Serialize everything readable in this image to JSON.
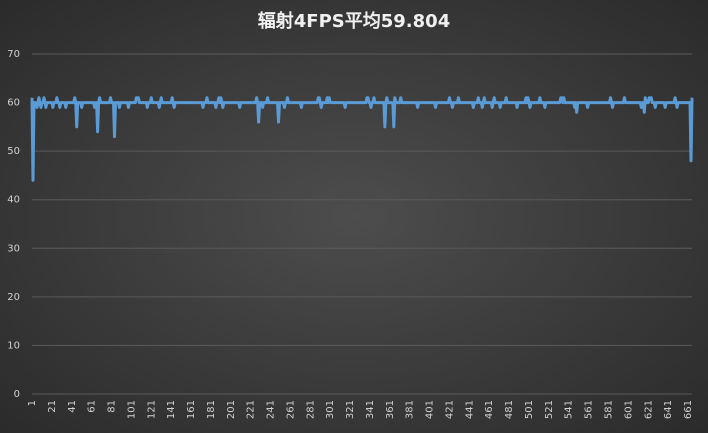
{
  "chart_data": {
    "type": "line",
    "title": "辐射4FPS平均59.804",
    "x": [
      1,
      2,
      3,
      4,
      5,
      6,
      7,
      8,
      9,
      10,
      11,
      12,
      13,
      14,
      15,
      16,
      17,
      18,
      19,
      20,
      21,
      22,
      23,
      24,
      25,
      26,
      27,
      28,
      29,
      30,
      31,
      32,
      33,
      34,
      35,
      36,
      37,
      38,
      39,
      40,
      41,
      42,
      43,
      44,
      45,
      46,
      47,
      48,
      49,
      50,
      51,
      52,
      53,
      54,
      55,
      56,
      57,
      58,
      59,
      60,
      61,
      62,
      63,
      64,
      65,
      66,
      67,
      68,
      69,
      70,
      71,
      72,
      73,
      74,
      75,
      76,
      77,
      78,
      79,
      80,
      81,
      82,
      83,
      84,
      85,
      86,
      87,
      88,
      89,
      90,
      91,
      92,
      93,
      94,
      95,
      96,
      97,
      98,
      99,
      100,
      101,
      102,
      103,
      104,
      105,
      106,
      107,
      108,
      109,
      110,
      111,
      112,
      113,
      114,
      115,
      116,
      117,
      118,
      119,
      120,
      121,
      122,
      123,
      124,
      125,
      126,
      127,
      128,
      129,
      130,
      131,
      132,
      133,
      134,
      135,
      136,
      137,
      138,
      139,
      140,
      141,
      142,
      143,
      144,
      145,
      146,
      147,
      148,
      149,
      150,
      151,
      152,
      153,
      154,
      155,
      156,
      157,
      158,
      159,
      160,
      161,
      162,
      163,
      164,
      165,
      166,
      167,
      168,
      169,
      170,
      171,
      172,
      173,
      174,
      175,
      176,
      177,
      178,
      179,
      180,
      181,
      182,
      183,
      184,
      185,
      186,
      187,
      188,
      189,
      190,
      191,
      192,
      193,
      194,
      195,
      196,
      197,
      198,
      199,
      200,
      201,
      202,
      203,
      204,
      205,
      206,
      207,
      208,
      209,
      210,
      211,
      212,
      213,
      214,
      215,
      216,
      217,
      218,
      219,
      220,
      221,
      222,
      223,
      224,
      225,
      226,
      227,
      228,
      229,
      230,
      231,
      232,
      233,
      234,
      235,
      236,
      237,
      238,
      239,
      240,
      241,
      242,
      243,
      244,
      245,
      246,
      247,
      248,
      249,
      250,
      251,
      252,
      253,
      254,
      255,
      256,
      257,
      258,
      259,
      260,
      261,
      262,
      263,
      264,
      265,
      266,
      267,
      268,
      269,
      270,
      271,
      272,
      273,
      274,
      275,
      276,
      277,
      278,
      279,
      280,
      281,
      282,
      283,
      284,
      285,
      286,
      287,
      288,
      289,
      290,
      291,
      292,
      293,
      294,
      295,
      296,
      297,
      298,
      299,
      300,
      301,
      302,
      303,
      304,
      305,
      306,
      307,
      308,
      309,
      310,
      311,
      312,
      313,
      314,
      315,
      316,
      317,
      318,
      319,
      320,
      321,
      322,
      323,
      324,
      325,
      326,
      327,
      328,
      329,
      330,
      331,
      332,
      333,
      334,
      335,
      336,
      337,
      338,
      339,
      340,
      341,
      342,
      343,
      344,
      345,
      346,
      347,
      348,
      349,
      350,
      351,
      352,
      353,
      354,
      355,
      356,
      357,
      358,
      359,
      360,
      361,
      362,
      363,
      364,
      365,
      366,
      367,
      368,
      369,
      370,
      371,
      372,
      373,
      374,
      375,
      376,
      377,
      378,
      379,
      380,
      381,
      382,
      383,
      384,
      385,
      386,
      387,
      388,
      389,
      390,
      391,
      392,
      393,
      394,
      395,
      396,
      397,
      398,
      399,
      400,
      401,
      402,
      403,
      404,
      405,
      406,
      407,
      408,
      409,
      410,
      411,
      412,
      413,
      414,
      415,
      416,
      417,
      418,
      419,
      420,
      421,
      422,
      423,
      424,
      425,
      426,
      427,
      428,
      429,
      430,
      431,
      432,
      433,
      434,
      435,
      436,
      437,
      438,
      439,
      440,
      441,
      442,
      443,
      444,
      445,
      446,
      447,
      448,
      449,
      450,
      451,
      452,
      453,
      454,
      455,
      456,
      457,
      458,
      459,
      460,
      461,
      462,
      463,
      464,
      465,
      466,
      467,
      468,
      469,
      470,
      471,
      472,
      473,
      474,
      475,
      476,
      477,
      478,
      479,
      480,
      481,
      482,
      483,
      484,
      485,
      486,
      487,
      488,
      489,
      490,
      491,
      492,
      493,
      494,
      495,
      496,
      497,
      498,
      499,
      500,
      501,
      502,
      503,
      504,
      505,
      506,
      507,
      508,
      509,
      510,
      511,
      512,
      513,
      514,
      515,
      516,
      517,
      518,
      519,
      520,
      521,
      522,
      523,
      524,
      525,
      526,
      527,
      528,
      529,
      530,
      531,
      532,
      533,
      534,
      535,
      536,
      537,
      538,
      539,
      540,
      541,
      542,
      543,
      544,
      545,
      546,
      547,
      548,
      549,
      550,
      551,
      552,
      553,
      554,
      555,
      556,
      557,
      558,
      559,
      560,
      561,
      562,
      563,
      564,
      565,
      566,
      567,
      568,
      569,
      570,
      571,
      572,
      573,
      574,
      575,
      576,
      577,
      578,
      579,
      580,
      581,
      582,
      583,
      584,
      585,
      586,
      587,
      588,
      589,
      590,
      591,
      592,
      593,
      594,
      595,
      596,
      597,
      598,
      599,
      600,
      601,
      602,
      603,
      604,
      605,
      606,
      607,
      608,
      609,
      610,
      611,
      612,
      613,
      614,
      615,
      616,
      617,
      618,
      619,
      620,
      621,
      622,
      623,
      624,
      625,
      626,
      627,
      628,
      629,
      630,
      631,
      632,
      633,
      634,
      635,
      636,
      637,
      638,
      639,
      640,
      641,
      642,
      643,
      644,
      645,
      646,
      647,
      648,
      649,
      650,
      651,
      652,
      653,
      654,
      655,
      656,
      657,
      658,
      659,
      660,
      661,
      662,
      663,
      664,
      665
    ],
    "values": [
      61,
      44,
      60,
      60,
      60,
      59,
      60,
      61,
      60,
      59,
      60,
      60,
      61,
      60,
      59,
      60,
      60,
      60,
      60,
      60,
      60,
      59,
      60,
      60,
      60,
      61,
      60,
      60,
      59,
      60,
      60,
      60,
      60,
      60,
      59,
      60,
      60,
      60,
      60,
      60,
      60,
      60,
      60,
      61,
      60,
      55,
      60,
      60,
      60,
      60,
      59,
      60,
      60,
      60,
      60,
      60,
      60,
      60,
      60,
      60,
      60,
      60,
      60,
      59,
      60,
      60,
      54,
      60,
      61,
      60,
      60,
      60,
      60,
      60,
      60,
      60,
      60,
      60,
      60,
      61,
      60,
      60,
      60,
      53,
      60,
      60,
      60,
      60,
      59,
      60,
      60,
      60,
      60,
      60,
      60,
      60,
      60,
      59,
      60,
      60,
      60,
      60,
      60,
      60,
      60,
      61,
      61,
      61,
      60,
      60,
      60,
      60,
      60,
      60,
      60,
      60,
      59,
      60,
      60,
      60,
      61,
      60,
      60,
      60,
      60,
      60,
      60,
      60,
      59,
      60,
      61,
      60,
      60,
      60,
      60,
      60,
      60,
      60,
      60,
      60,
      60,
      61,
      60,
      59,
      60,
      60,
      60,
      60,
      60,
      60,
      60,
      60,
      60,
      60,
      60,
      60,
      60,
      60,
      60,
      60,
      60,
      60,
      60,
      60,
      60,
      60,
      60,
      60,
      60,
      60,
      60,
      60,
      59,
      60,
      60,
      60,
      61,
      60,
      60,
      60,
      60,
      60,
      60,
      60,
      60,
      59,
      60,
      60,
      61,
      60,
      61,
      60,
      59,
      60,
      60,
      60,
      60,
      60,
      60,
      60,
      60,
      60,
      60,
      60,
      60,
      60,
      60,
      60,
      60,
      59,
      60,
      60,
      60,
      60,
      60,
      60,
      60,
      60,
      60,
      60,
      60,
      60,
      60,
      60,
      60,
      60,
      61,
      60,
      56,
      60,
      60,
      60,
      59,
      60,
      60,
      60,
      60,
      61,
      60,
      60,
      60,
      60,
      60,
      60,
      60,
      60,
      60,
      60,
      56,
      60,
      60,
      60,
      60,
      60,
      59,
      60,
      60,
      61,
      60,
      60,
      60,
      60,
      60,
      60,
      60,
      60,
      60,
      60,
      60,
      60,
      60,
      59,
      60,
      60,
      60,
      60,
      60,
      60,
      60,
      60,
      60,
      60,
      60,
      60,
      60,
      60,
      60,
      60,
      61,
      61,
      60,
      59,
      60,
      60,
      60,
      60,
      60,
      61,
      60,
      61,
      60,
      60,
      60,
      60,
      60,
      60,
      60,
      60,
      60,
      60,
      60,
      60,
      60,
      60,
      60,
      59,
      60,
      60,
      60,
      60,
      60,
      60,
      60,
      60,
      60,
      60,
      60,
      60,
      60,
      60,
      60,
      60,
      60,
      60,
      60,
      60,
      60,
      61,
      61,
      60,
      60,
      59,
      60,
      60,
      61,
      60,
      60,
      60,
      60,
      60,
      60,
      60,
      60,
      60,
      60,
      55,
      60,
      61,
      60,
      60,
      60,
      60,
      60,
      60,
      55,
      61,
      60,
      60,
      60,
      60,
      60,
      61,
      60,
      60,
      60,
      60,
      60,
      60,
      60,
      60,
      60,
      60,
      60,
      60,
      60,
      60,
      60,
      60,
      59,
      60,
      60,
      60,
      60,
      60,
      60,
      60,
      60,
      60,
      60,
      60,
      60,
      60,
      60,
      60,
      60,
      60,
      59,
      60,
      60,
      60,
      60,
      60,
      60,
      60,
      60,
      60,
      60,
      60,
      60,
      60,
      61,
      60,
      60,
      59,
      60,
      60,
      60,
      60,
      60,
      61,
      60,
      60,
      60,
      60,
      60,
      60,
      60,
      60,
      60,
      60,
      60,
      60,
      60,
      60,
      59,
      60,
      60,
      60,
      60,
      61,
      60,
      60,
      60,
      59,
      60,
      61,
      60,
      60,
      60,
      60,
      60,
      60,
      60,
      59,
      60,
      61,
      60,
      60,
      60,
      60,
      60,
      59,
      60,
      60,
      60,
      60,
      60,
      61,
      60,
      60,
      60,
      60,
      60,
      60,
      60,
      60,
      60,
      60,
      59,
      60,
      60,
      60,
      60,
      60,
      60,
      60,
      60,
      61,
      60,
      61,
      60,
      59,
      60,
      60,
      60,
      60,
      60,
      60,
      60,
      60,
      60,
      61,
      60,
      60,
      60,
      60,
      59,
      60,
      60,
      60,
      60,
      60,
      60,
      60,
      60,
      60,
      60,
      60,
      60,
      60,
      60,
      60,
      61,
      61,
      60,
      61,
      60,
      60,
      60,
      60,
      60,
      60,
      60,
      60,
      60,
      60,
      59,
      60,
      58,
      60,
      60,
      60,
      60,
      60,
      60,
      60,
      60,
      60,
      60,
      59,
      60,
      60,
      60,
      60,
      60,
      60,
      60,
      60,
      60,
      60,
      60,
      60,
      60,
      60,
      60,
      60,
      60,
      60,
      60,
      60,
      60,
      60,
      61,
      60,
      59,
      60,
      60,
      60,
      60,
      60,
      60,
      60,
      60,
      60,
      60,
      60,
      61,
      60,
      60,
      60,
      60,
      60,
      60,
      60,
      60,
      60,
      60,
      60,
      60,
      60,
      60,
      60,
      60,
      59,
      60,
      60,
      58,
      61,
      60,
      60,
      60,
      61,
      61,
      61,
      60,
      60,
      60,
      59,
      60,
      60,
      60,
      60,
      60,
      60,
      60,
      60,
      60,
      59,
      60,
      60,
      60,
      60,
      60,
      60,
      60,
      60,
      60,
      61,
      60,
      59,
      60,
      60,
      60,
      60,
      60,
      60,
      60,
      60,
      60,
      60,
      60,
      60,
      60,
      48,
      61
    ],
    "color": "#5b9bd5",
    "xlim": [
      1,
      665
    ],
    "xticks": [
      1,
      21,
      41,
      61,
      81,
      101,
      121,
      141,
      161,
      181,
      201,
      221,
      241,
      261,
      281,
      301,
      321,
      341,
      361,
      381,
      401,
      421,
      441,
      461,
      481,
      501,
      521,
      541,
      561,
      581,
      601,
      621,
      641,
      661
    ],
    "ylim": [
      0,
      70
    ],
    "yticks": [
      0,
      10,
      20,
      30,
      40,
      50,
      60,
      70
    ],
    "grid": true
  }
}
